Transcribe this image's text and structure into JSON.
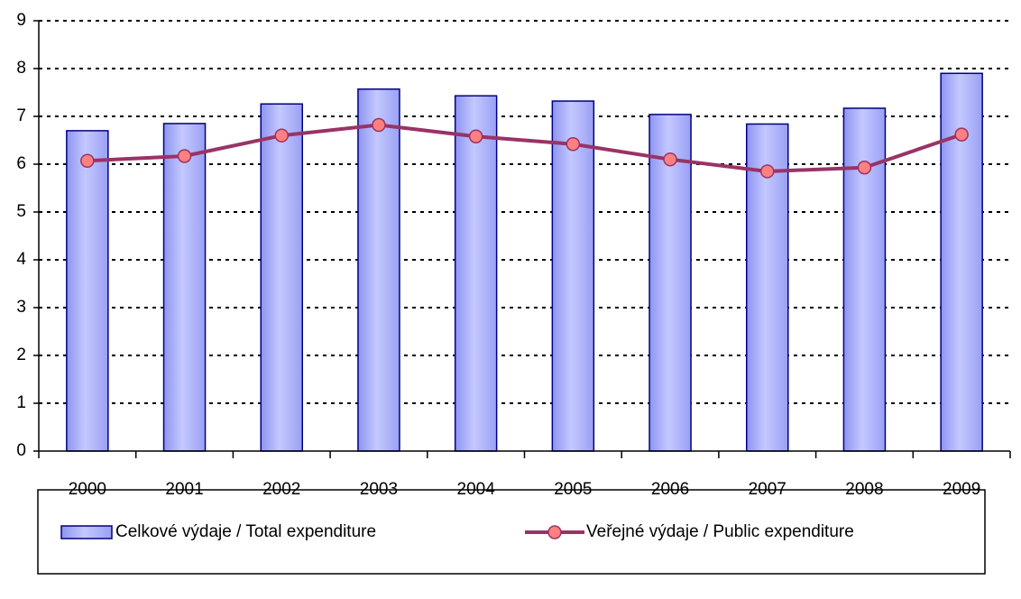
{
  "chart_data": {
    "type": "bar",
    "categories": [
      "2000",
      "2001",
      "2002",
      "2003",
      "2004",
      "2005",
      "2006",
      "2007",
      "2008",
      "2009"
    ],
    "series": [
      {
        "name": "Celkové výdaje / Total expenditure",
        "type": "bar",
        "color": "#b0b4ff",
        "values": [
          6.7,
          6.85,
          7.26,
          7.57,
          7.43,
          7.32,
          7.04,
          6.84,
          7.17,
          7.9
        ]
      },
      {
        "name": "Veřejné výdaje / Public expenditure",
        "type": "line",
        "color": "#993366",
        "marker_color": "#ff8080",
        "values": [
          6.07,
          6.17,
          6.6,
          6.82,
          6.58,
          6.42,
          6.1,
          5.85,
          5.93,
          6.62
        ]
      }
    ],
    "ylim": [
      0,
      9
    ],
    "yticks": [
      0,
      1,
      2,
      3,
      4,
      5,
      6,
      7,
      8,
      9
    ],
    "grid": true,
    "legend": "bottom"
  }
}
